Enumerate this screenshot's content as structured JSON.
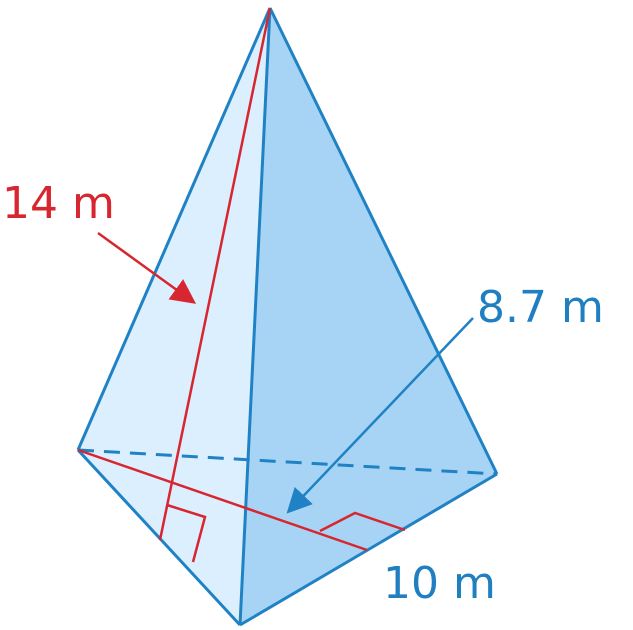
{
  "labels": {
    "slant_height": "14 m",
    "base_height": "8.7 m",
    "base_side": "10 m"
  },
  "colors": {
    "face_light": "#dcefff",
    "face_dark": "#a7d4f5",
    "edge_blue": "#1f82c4",
    "measure_red": "#d7262f",
    "text_blue": "#1f7fc0"
  }
}
